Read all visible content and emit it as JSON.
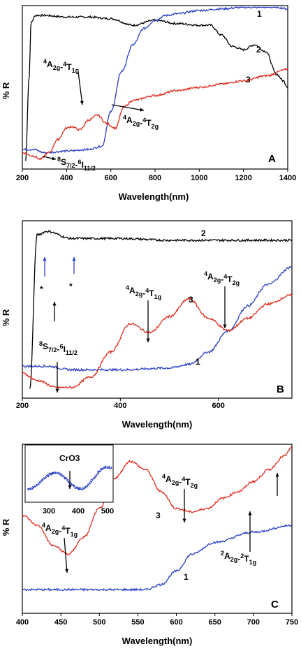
{
  "chart_data": [
    {
      "type": "line",
      "panel": "A",
      "xlabel": "Wavelength(nm)",
      "ylabel": "% R",
      "xlim": [
        200,
        1400
      ],
      "xticks": [
        "200",
        "400",
        "600",
        "800",
        "1000",
        "1200",
        "1400"
      ],
      "series": [
        {
          "name": "1",
          "color": "#000000",
          "x": [
            215,
            230,
            240,
            260,
            300,
            400,
            500,
            600,
            700,
            800,
            900,
            1000,
            1050,
            1100,
            1150,
            1200,
            1250,
            1300,
            1350,
            1380,
            1400
          ],
          "y": [
            5,
            55,
            90,
            94,
            94,
            93,
            93,
            92,
            88,
            91,
            89,
            88,
            88,
            82,
            75,
            73,
            76,
            72,
            58,
            54,
            50
          ]
        },
        {
          "name": "2",
          "color": "#2a3fc4",
          "x": [
            200,
            250,
            300,
            400,
            500,
            560,
            600,
            650,
            700,
            750,
            800,
            850,
            900,
            1000,
            1100,
            1200,
            1300,
            1350,
            1400
          ],
          "y": [
            12,
            12,
            10,
            11,
            12,
            14,
            35,
            60,
            76,
            86,
            91,
            94,
            95,
            97,
            98,
            99,
            99,
            99,
            98
          ]
        },
        {
          "name": "3",
          "color": "#e02a1c",
          "x": [
            200,
            250,
            280,
            320,
            360,
            400,
            420,
            460,
            500,
            540,
            580,
            620,
            660,
            700,
            800,
            900,
            1000,
            1100,
            1200,
            1300,
            1400
          ],
          "y": [
            10,
            8,
            6,
            10,
            18,
            25,
            26,
            24,
            30,
            33,
            28,
            25,
            38,
            42,
            45,
            48,
            50,
            52,
            54,
            57,
            61
          ]
        }
      ],
      "annotations": [
        {
          "label": "4A2g-4T1g"
        },
        {
          "label": "4A2g-4T2g"
        },
        {
          "label": "8S7/2-6I11/2"
        }
      ]
    },
    {
      "type": "line",
      "panel": "B",
      "xlabel": "Wavelength(nm)",
      "ylabel": "% R",
      "xlim": [
        200,
        750
      ],
      "xticks": [
        "200",
        "400",
        "600"
      ],
      "series": [
        {
          "name": "1",
          "color": "#2a3fc4",
          "x": [
            200,
            250,
            300,
            400,
            500,
            540,
            580,
            620,
            660,
            700,
            750
          ],
          "y": [
            18,
            18,
            16,
            16,
            17,
            19,
            26,
            38,
            52,
            64,
            74
          ]
        },
        {
          "name": "2",
          "color": "#000000",
          "x": [
            215,
            230,
            250,
            300,
            400,
            500,
            600,
            700,
            750
          ],
          "y": [
            5,
            92,
            94,
            90,
            90,
            89,
            89,
            89,
            89
          ]
        },
        {
          "name": "3",
          "color": "#e02a1c",
          "x": [
            200,
            230,
            270,
            300,
            340,
            380,
            420,
            460,
            500,
            540,
            580,
            620,
            660,
            700,
            750
          ],
          "y": [
            14,
            10,
            6,
            6,
            12,
            26,
            42,
            37,
            46,
            56,
            45,
            38,
            45,
            53,
            58
          ]
        }
      ],
      "annotations": [
        {
          "label": "4A2g-4T1g"
        },
        {
          "label": "4A2g-4T2g"
        },
        {
          "label": "8S7/2-6I11/2"
        },
        {
          "label": "*"
        },
        {
          "label": "*"
        }
      ]
    },
    {
      "type": "line",
      "panel": "C",
      "xlabel": "Wavelength(nm)",
      "ylabel": "% R",
      "xlim": [
        400,
        750
      ],
      "xticks": [
        "400",
        "450",
        "500",
        "550",
        "600",
        "650",
        "700",
        "750"
      ],
      "series": [
        {
          "name": "1",
          "color": "#2a3fc4",
          "x": [
            400,
            450,
            500,
            560,
            580,
            600,
            620,
            650,
            700,
            750
          ],
          "y": [
            14,
            14,
            14,
            14,
            17,
            25,
            35,
            42,
            48,
            52
          ]
        },
        {
          "name": "3",
          "color": "#e02a1c",
          "x": [
            400,
            420,
            440,
            460,
            480,
            500,
            520,
            540,
            560,
            580,
            600,
            620,
            640,
            660,
            680,
            700,
            720,
            740,
            750
          ],
          "y": [
            58,
            52,
            40,
            35,
            45,
            62,
            80,
            90,
            85,
            72,
            62,
            60,
            62,
            68,
            72,
            78,
            85,
            93,
            98
          ]
        }
      ],
      "annotations": [
        {
          "label": "4A2g-4T1g"
        },
        {
          "label": "4A2g-4T2g"
        },
        {
          "label": "2A2g-2T1g"
        }
      ],
      "inset": {
        "title": "CrO3",
        "xticks": [
          "300",
          "400",
          "500"
        ],
        "color": "#2a3fc4"
      }
    }
  ],
  "panel_labels": {
    "a": "A",
    "b": "B",
    "c": "C"
  },
  "curve_labels": {
    "one": "1",
    "two": "2",
    "three": "3"
  },
  "axis_text": {
    "xlabel": "Wavelength(nm)",
    "ylabel": "% R"
  }
}
